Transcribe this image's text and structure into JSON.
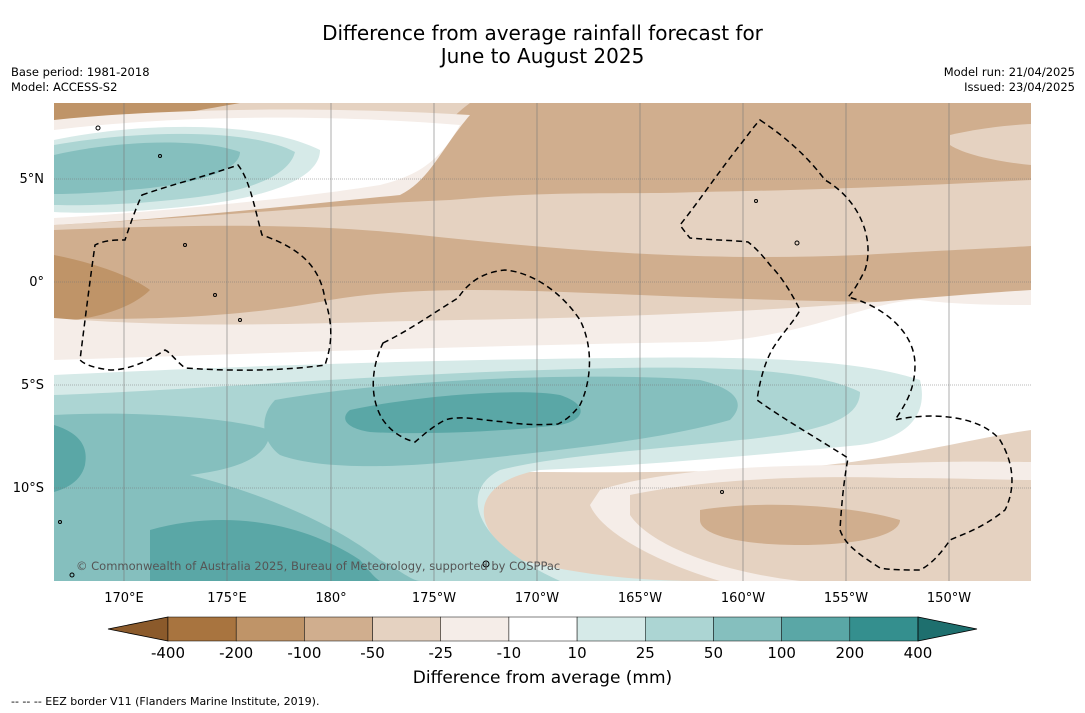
{
  "title": {
    "line1": "Difference from average rainfall forecast for",
    "line2": "June to August 2025"
  },
  "meta": {
    "base_period": "Base period: 1981-2018",
    "model": "Model: ACCESS-S2",
    "model_run": "Model run: 21/04/2025",
    "issued": "Issued: 23/04/2025"
  },
  "axes": {
    "lat_ticks": [
      "5°N",
      "0°",
      "5°S",
      "10°S"
    ],
    "lon_ticks": [
      "170°E",
      "175°E",
      "180°",
      "175°W",
      "170°W",
      "165°W",
      "160°W",
      "155°W",
      "150°W"
    ]
  },
  "colorbar": {
    "title": "Difference from average (mm)",
    "tick_labels": [
      "-400",
      "-200",
      "-100",
      "-50",
      "-25",
      "-10",
      "10",
      "25",
      "50",
      "100",
      "200",
      "400"
    ],
    "colors": [
      "#8b5a2b",
      "#a8743f",
      "#bf9468",
      "#d0ae8e",
      "#e5d2c1",
      "#f5ede8",
      "#ffffff",
      "#d6eae8",
      "#acd5d3",
      "#85bfbe",
      "#5aa7a6",
      "#348f8e",
      "#1e6f6e"
    ]
  },
  "copyright": "© Commonwealth of Australia 2025, Bureau of Meteorology, supported by COSPPac",
  "footnote": "-- -- -- EEZ border V11 (Flanders Marine Institute, 2019)."
}
